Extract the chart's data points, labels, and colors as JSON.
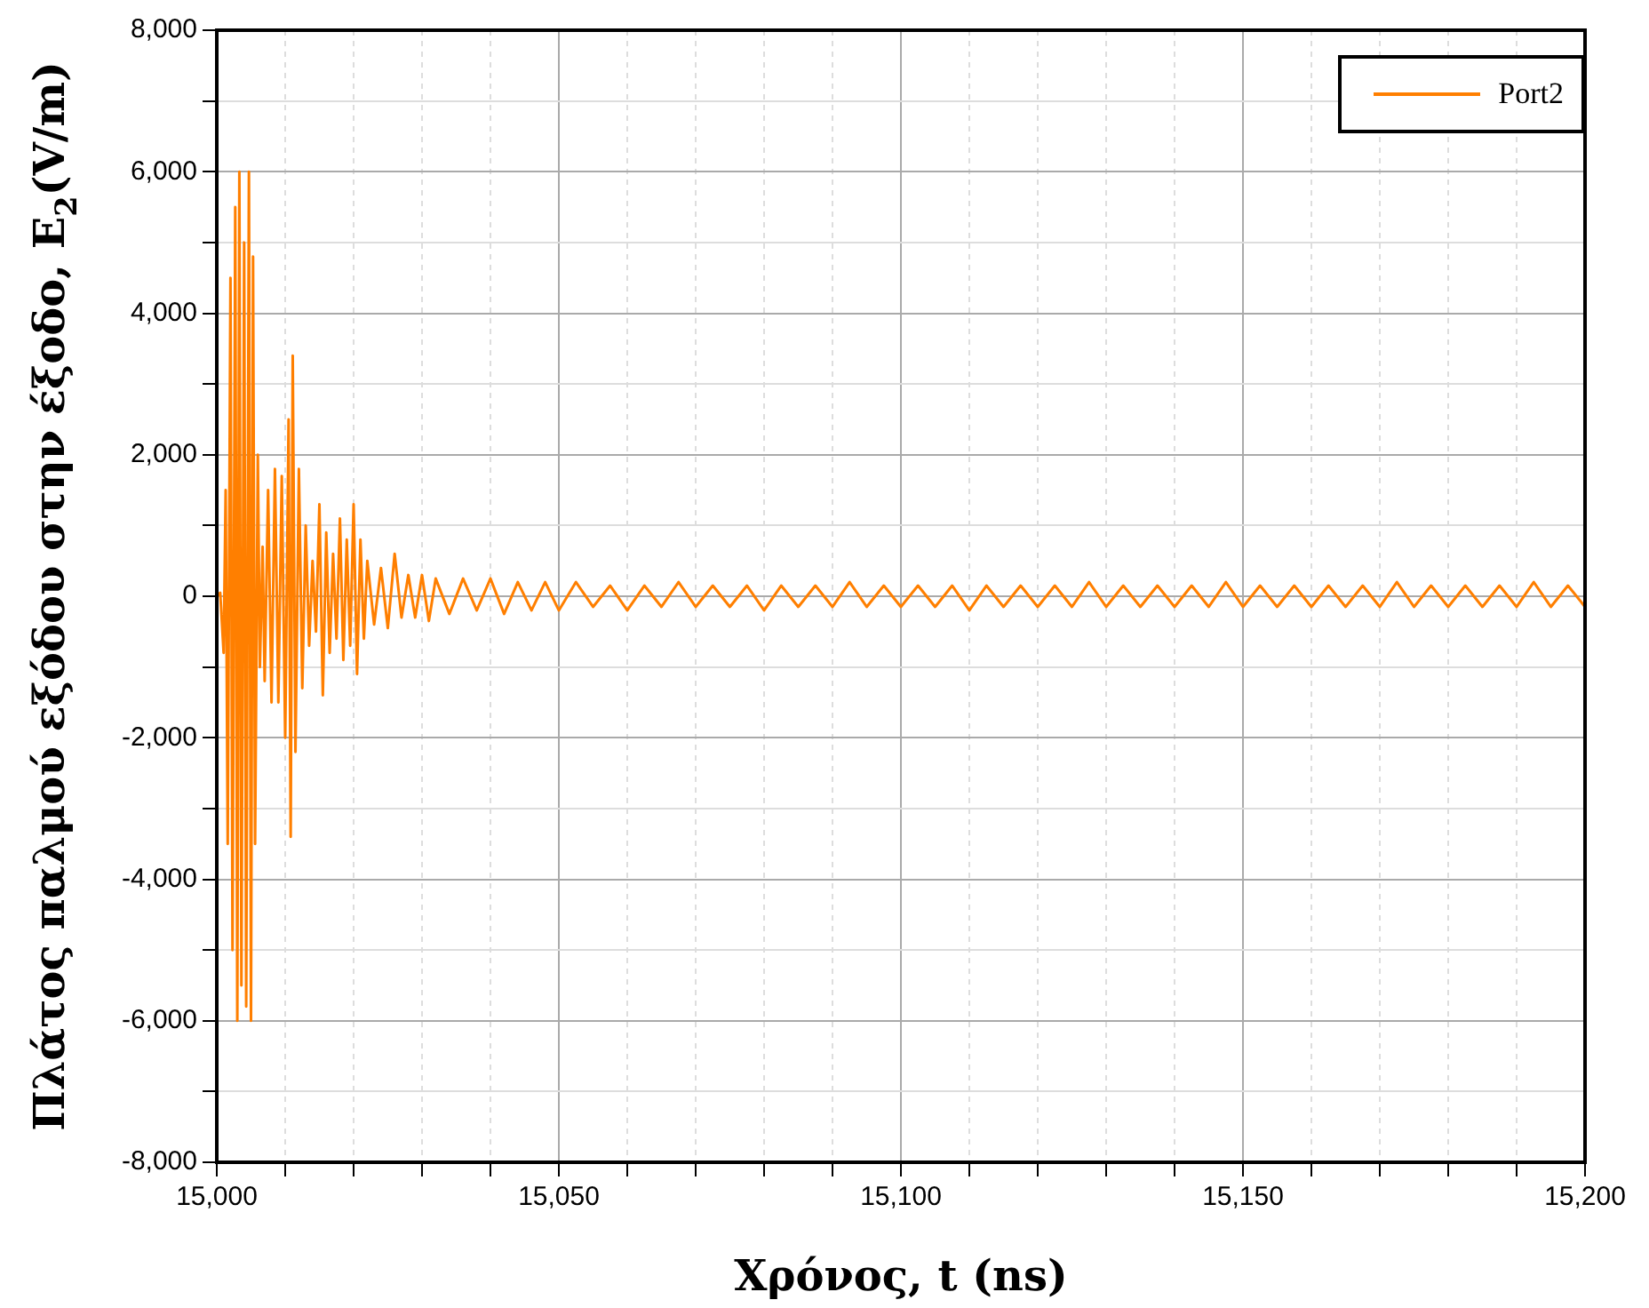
{
  "chart_data": {
    "type": "line",
    "xlabel": "Χρόνος, t (ns)",
    "ylabel": "Πλάτος παλμού εξόδου στην έξοδο, E$_{2}$(V/m)",
    "xlim": [
      15000,
      15200
    ],
    "ylim": [
      -8000,
      8000
    ],
    "xticks": [
      {
        "value": 15000,
        "label": "15,000"
      },
      {
        "value": 15010,
        "label": null
      },
      {
        "value": 15020,
        "label": null
      },
      {
        "value": 15030,
        "label": null
      },
      {
        "value": 15040,
        "label": null
      },
      {
        "value": 15050,
        "label": "15,050"
      },
      {
        "value": 15060,
        "label": null
      },
      {
        "value": 15070,
        "label": null
      },
      {
        "value": 15080,
        "label": null
      },
      {
        "value": 15090,
        "label": null
      },
      {
        "value": 15100,
        "label": "15,100"
      },
      {
        "value": 15110,
        "label": null
      },
      {
        "value": 15120,
        "label": null
      },
      {
        "value": 15130,
        "label": null
      },
      {
        "value": 15140,
        "label": null
      },
      {
        "value": 15150,
        "label": "15,150"
      },
      {
        "value": 15160,
        "label": null
      },
      {
        "value": 15170,
        "label": null
      },
      {
        "value": 15180,
        "label": null
      },
      {
        "value": 15190,
        "label": null
      },
      {
        "value": 15200,
        "label": "15,200"
      }
    ],
    "yticks": [
      {
        "value": -8000,
        "label": "-8,000"
      },
      {
        "value": -7000,
        "label": null
      },
      {
        "value": -6000,
        "label": "-6,000"
      },
      {
        "value": -5000,
        "label": null
      },
      {
        "value": -4000,
        "label": "-4,000"
      },
      {
        "value": -3000,
        "label": null
      },
      {
        "value": -2000,
        "label": "-2,000"
      },
      {
        "value": -1000,
        "label": null
      },
      0,
      {
        "value": 1000,
        "label": null
      },
      {
        "value": 2000,
        "label": "2,000"
      },
      {
        "value": 3000,
        "label": null
      },
      {
        "value": 4000,
        "label": "4,000"
      },
      {
        "value": 5000,
        "label": null
      },
      {
        "value": 6000,
        "label": "6,000"
      },
      {
        "value": 7000,
        "label": null
      },
      {
        "value": 8000,
        "label": "8,000"
      }
    ],
    "grid": true,
    "legend": "top right",
    "marker": "none",
    "line_style": "solid",
    "series": [
      {
        "name": "Port2",
        "color": "#ff7f00",
        "x": [
          15000,
          15000.5,
          15001,
          15001.3,
          15001.6,
          15002,
          15002.3,
          15002.7,
          15003,
          15003.3,
          15003.6,
          15004,
          15004.3,
          15004.7,
          15005,
          15005.3,
          15005.6,
          15006,
          15006.3,
          15006.7,
          15007,
          15007.5,
          15008,
          15008.5,
          15009,
          15009.5,
          15010,
          15010.5,
          15010.8,
          15011.1,
          15011.5,
          15012,
          15012.5,
          15013,
          15013.5,
          15014,
          15014.5,
          15015,
          15015.5,
          15016,
          15016.5,
          15017,
          15017.5,
          15018,
          15018.5,
          15019,
          15019.5,
          15020,
          15020.5,
          15021,
          15021.5,
          15022,
          15023,
          15024,
          15025,
          15026,
          15027,
          15028,
          15029,
          15030,
          15031,
          15032,
          15034,
          15036,
          15038,
          15040,
          15042,
          15044,
          15046,
          15048,
          15050,
          15052.5,
          15055,
          15057.5,
          15060,
          15062.5,
          15065,
          15067.5,
          15070,
          15072.5,
          15075,
          15077.5,
          15080,
          15082.5,
          15085,
          15087.5,
          15090,
          15092.5,
          15095,
          15097.5,
          15100,
          15102.5,
          15105,
          15107.5,
          15110,
          15112.5,
          15115,
          15117.5,
          15120,
          15122.5,
          15125,
          15127.5,
          15130,
          15132.5,
          15135,
          15137.5,
          15140,
          15142.5,
          15145,
          15147.5,
          15150,
          15152.5,
          15155,
          15157.5,
          15160,
          15162.5,
          15165,
          15167.5,
          15170,
          15172.5,
          15175,
          15177.5,
          15180,
          15182.5,
          15185,
          15187.5,
          15190,
          15192.5,
          15195,
          15197.5,
          15200
        ],
        "values": [
          0,
          50,
          -800,
          1500,
          -3500,
          4500,
          -5000,
          5500,
          -6000,
          6000,
          -5500,
          5000,
          -5800,
          6000,
          -6000,
          4800,
          -3500,
          2000,
          -1000,
          700,
          -1200,
          1500,
          -1500,
          1800,
          -1500,
          1700,
          -2000,
          2500,
          -3400,
          3400,
          -2200,
          1800,
          -1300,
          1000,
          -700,
          500,
          -500,
          1300,
          -1400,
          900,
          -800,
          600,
          -600,
          1100,
          -900,
          800,
          -700,
          1300,
          -1100,
          800,
          -600,
          500,
          -400,
          400,
          -450,
          600,
          -300,
          300,
          -300,
          300,
          -350,
          250,
          -250,
          250,
          -200,
          250,
          -250,
          200,
          -200,
          200,
          -200,
          200,
          -150,
          150,
          -200,
          150,
          -150,
          200,
          -150,
          150,
          -150,
          150,
          -200,
          150,
          -150,
          150,
          -150,
          200,
          -150,
          150,
          -150,
          150,
          -150,
          150,
          -200,
          150,
          -150,
          150,
          -150,
          150,
          -150,
          200,
          -150,
          150,
          -150,
          150,
          -150,
          150,
          -150,
          200,
          -150,
          150,
          -150,
          150,
          -150,
          150,
          -150,
          150,
          -150,
          200,
          -150,
          150,
          -150,
          150,
          -150,
          150,
          -150,
          200,
          -150,
          150,
          -150
        ]
      }
    ]
  }
}
